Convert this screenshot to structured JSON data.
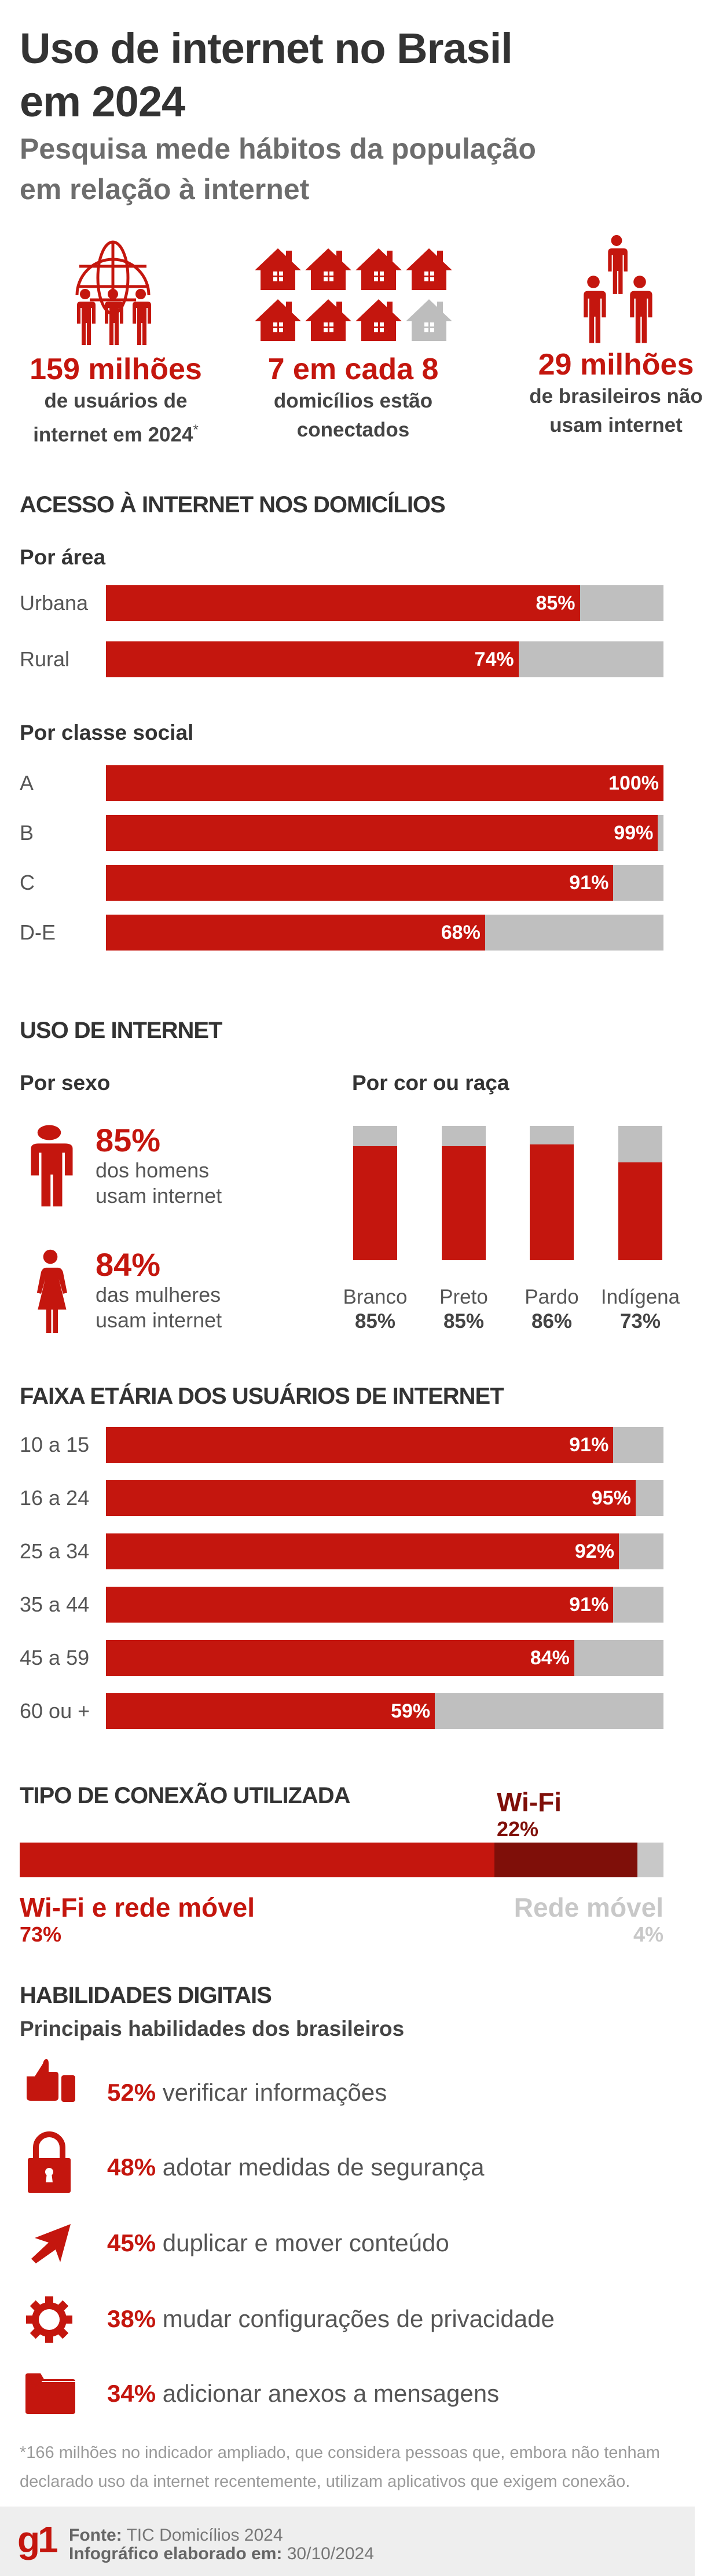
{
  "header": {
    "title_line1": "Uso de internet no Brasil",
    "title_line2": "em 2024",
    "subtitle_line1": "Pesquisa mede hábitos da população",
    "subtitle_line2": "em relação à internet"
  },
  "stats": [
    {
      "value": "159 milhões",
      "desc_line1": "de usuários de",
      "desc_line2": "internet em 2024",
      "mark": "*",
      "icon": "globe-people-icon"
    },
    {
      "value": "7 em cada 8",
      "desc_line1": "domicílios estão",
      "desc_line2": "conectados",
      "icon": "houses-icon",
      "connected": 7,
      "total": 8
    },
    {
      "value": "29 milhões",
      "desc_line1": "de brasileiros não",
      "desc_line2": "usam internet",
      "icon": "people-group-icon"
    }
  ],
  "sections": {
    "acesso": "ACESSO À INTERNET NOS DOMICÍLIOS",
    "uso": "USO DE INTERNET",
    "faixa": "FAIXA ETÁRIA DOS USUÁRIOS DE INTERNET",
    "conexao": "TIPO DE CONEXÃO UTILIZADA",
    "habilidades": "HABILIDADES DIGITAIS",
    "habilidades_sub": "Principais habilidades dos brasileiros"
  },
  "sexo": {
    "title": "Por sexo",
    "items": [
      {
        "pct": "85%",
        "line1": "dos homens",
        "line2": "usam internet",
        "icon": "man-icon"
      },
      {
        "pct": "84%",
        "line1": "das mulheres",
        "line2": "usam internet",
        "icon": "woman-icon"
      }
    ]
  },
  "chart_data": [
    {
      "type": "bar",
      "orientation": "horizontal",
      "title": "Por área",
      "categories": [
        "Urbana",
        "Rural"
      ],
      "values": [
        85,
        74
      ],
      "xlim": [
        0,
        100
      ],
      "unit": "%"
    },
    {
      "type": "bar",
      "orientation": "horizontal",
      "title": "Por classe social",
      "categories": [
        "A",
        "B",
        "C",
        "D-E"
      ],
      "values": [
        100,
        99,
        91,
        68
      ],
      "xlim": [
        0,
        100
      ],
      "unit": "%"
    },
    {
      "type": "bar",
      "orientation": "vertical",
      "title": "Por cor ou raça",
      "categories": [
        "Branco",
        "Preto",
        "Pardo",
        "Indígena"
      ],
      "values": [
        85,
        85,
        86,
        73
      ],
      "ylim": [
        0,
        100
      ],
      "unit": "%"
    },
    {
      "type": "bar",
      "orientation": "horizontal",
      "title": "",
      "categories": [
        "10 a 15",
        "16 a 24",
        "25 a 34",
        "35 a 44",
        "45 a 59",
        "60 ou +"
      ],
      "values": [
        91,
        95,
        92,
        91,
        84,
        59
      ],
      "xlim": [
        0,
        100
      ],
      "unit": "%"
    },
    {
      "type": "stacked-bar",
      "title": "",
      "series": [
        {
          "name": "Wi-Fi e rede móvel",
          "value": 73,
          "color": "#c4160e"
        },
        {
          "name": "Wi-Fi",
          "value": 22,
          "color": "#7f0f09"
        },
        {
          "name": "Rede móvel",
          "value": 4,
          "color": "#c8c8c8"
        }
      ],
      "unit": "%"
    }
  ],
  "skills": [
    {
      "pct": "52%",
      "label": "verificar informações",
      "icon": "thumbs-up-icon"
    },
    {
      "pct": "48%",
      "label": "adotar medidas de segurança",
      "icon": "lock-icon"
    },
    {
      "pct": "45%",
      "label": "duplicar e mover conteúdo",
      "icon": "cursor-arrow-icon"
    },
    {
      "pct": "38%",
      "label": "mudar configurações de privacidade",
      "icon": "gear-icon"
    },
    {
      "pct": "34%",
      "label": "adicionar anexos a mensagens",
      "icon": "folder-icon"
    }
  ],
  "footnote": "*166 milhões no indicador ampliado, que considera pessoas que, embora não tenham declarado uso da internet recentemente, utilizam aplicativos que exigem conexão.",
  "footer": {
    "logo": "g1",
    "source_label": "Fonte:",
    "source": "TIC Domicílios 2024",
    "date_label": "Infográfico elaborado em:",
    "date": "30/10/2024"
  },
  "colors": {
    "red": "#c4160e",
    "dark_red": "#7f0f09",
    "gray_bar": "#bfbfbf",
    "text": "#333333"
  }
}
